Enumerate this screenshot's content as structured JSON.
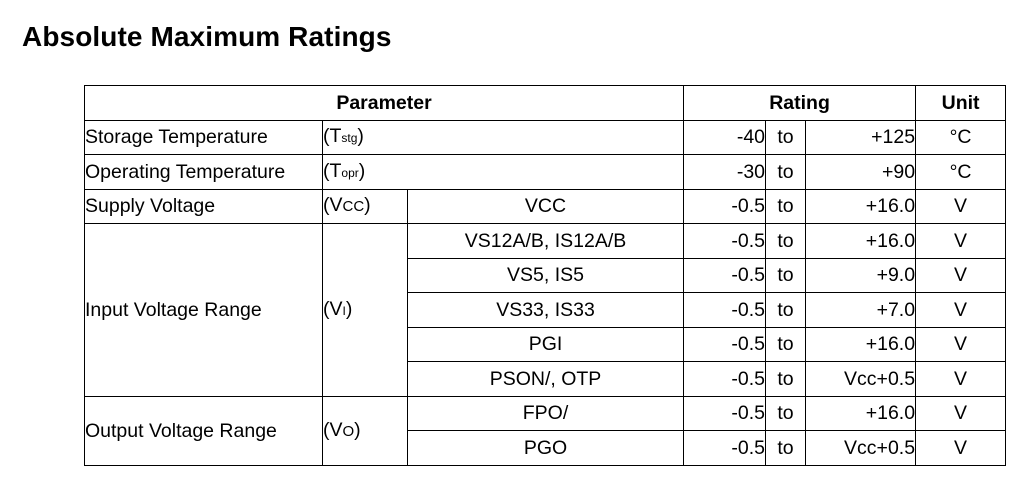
{
  "title": "Absolute Maximum Ratings",
  "headers": {
    "parameter": "Parameter",
    "rating": "Rating",
    "unit": "Unit"
  },
  "rows": {
    "storage": {
      "name": "Storage Temperature",
      "sym_pre": "(T",
      "sym_sub": "stg",
      "sym_post": ")",
      "min": "-40",
      "to": "to",
      "max": "+125",
      "unit": "°C"
    },
    "operating": {
      "name": "Operating Temperature",
      "sym_pre": "(T",
      "sym_sub": "opr",
      "sym_post": ")",
      "min": "-30",
      "to": "to",
      "max": "+90",
      "unit": "°C"
    },
    "supply": {
      "name": "Supply Voltage",
      "sym_pre": "(V",
      "sym_sub": "CC",
      "sym_post": ")",
      "signal": "VCC",
      "min": "-0.5",
      "to": "to",
      "max": "+16.0",
      "unit": "V"
    },
    "input": {
      "name": "Input Voltage Range",
      "sym_pre": "(V",
      "sym_sub": "I",
      "sym_post": ")",
      "items": [
        {
          "signal": "VS12A/B, IS12A/B",
          "min": "-0.5",
          "to": "to",
          "max": "+16.0",
          "unit": "V"
        },
        {
          "signal": "VS5, IS5",
          "min": "-0.5",
          "to": "to",
          "max": "+9.0",
          "unit": "V"
        },
        {
          "signal": "VS33, IS33",
          "min": "-0.5",
          "to": "to",
          "max": "+7.0",
          "unit": "V"
        },
        {
          "signal": "PGI",
          "min": "-0.5",
          "to": "to",
          "max": "+16.0",
          "unit": "V"
        },
        {
          "signal": "PSON/, OTP",
          "min": "-0.5",
          "to": "to",
          "max": "Vcc+0.5",
          "unit": "V"
        }
      ]
    },
    "output": {
      "name": "Output Voltage Range",
      "sym_pre": "(V",
      "sym_sub": "O",
      "sym_post": ")",
      "items": [
        {
          "signal": "FPO/",
          "min": "-0.5",
          "to": "to",
          "max": "+16.0",
          "unit": "V"
        },
        {
          "signal": "PGO",
          "min": "-0.5",
          "to": "to",
          "max": "Vcc+0.5",
          "unit": "V"
        }
      ]
    }
  }
}
